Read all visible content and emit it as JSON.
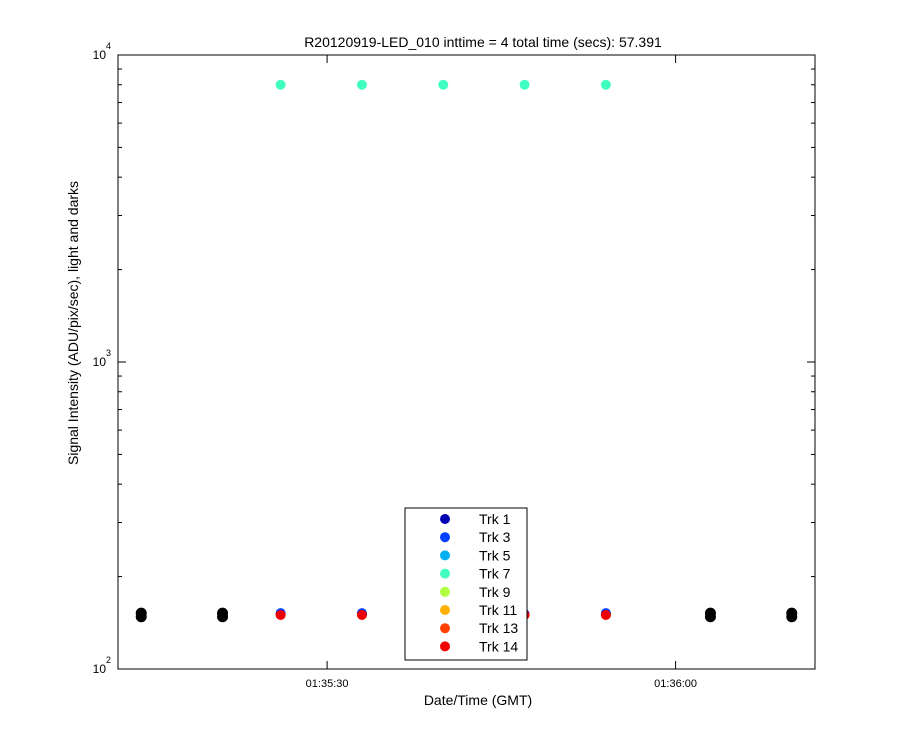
{
  "chart_data": {
    "type": "scatter",
    "title": "R20120919-LED_010 inttime = 4 total time (secs): 57.391",
    "xlabel": "Date/Time (GMT)",
    "ylabel": "Signal Intensity (ADU/pix/sec), light and darks",
    "x_axis": {
      "type": "time",
      "range": [
        "01:35:12",
        "01:36:12"
      ],
      "ticks": [
        "01:35:30",
        "01:36:00"
      ]
    },
    "y_axis": {
      "scale": "log",
      "range": [
        100,
        10000
      ],
      "ticks": [
        {
          "value": 100,
          "base": "10",
          "exp": "2"
        },
        {
          "value": 1000,
          "base": "10",
          "exp": "3"
        },
        {
          "value": 10000,
          "base": "10",
          "exp": "4"
        }
      ]
    },
    "grid": false,
    "legend_position": "bottom-center",
    "series": [
      {
        "name": "Trk 1",
        "color": "#0000b0",
        "x": [
          "01:35:26",
          "01:35:33",
          "01:35:47",
          "01:35:54"
        ],
        "y": [
          151,
          151,
          151,
          151
        ]
      },
      {
        "name": "Trk 3",
        "color": "#0040ff",
        "x": [
          "01:35:26",
          "01:35:33",
          "01:35:47",
          "01:35:54"
        ],
        "y": [
          152,
          152,
          151,
          152
        ]
      },
      {
        "name": "Trk 5",
        "color": "#00b0f0",
        "x": [],
        "y": []
      },
      {
        "name": "Trk 7",
        "color": "#40ffc0",
        "x": [
          "01:35:26",
          "01:35:33",
          "01:35:40",
          "01:35:47",
          "01:35:54"
        ],
        "y": [
          8000,
          8000,
          8000,
          8000,
          8000
        ]
      },
      {
        "name": "Trk 9",
        "color": "#b0ff40",
        "x": [],
        "y": []
      },
      {
        "name": "Trk 11",
        "color": "#ffb000",
        "x": [],
        "y": []
      },
      {
        "name": "Trk 13",
        "color": "#ff4000",
        "x": [],
        "y": []
      },
      {
        "name": "Trk 14",
        "color": "#f00000",
        "x": [
          "01:35:26",
          "01:35:33",
          "01:35:47",
          "01:35:54"
        ],
        "y": [
          150,
          150,
          150,
          150
        ]
      }
    ],
    "darks": {
      "color": "#000000",
      "x": [
        "01:35:14",
        "01:35:14",
        "01:35:21",
        "01:35:21",
        "01:36:03",
        "01:36:03",
        "01:36:10",
        "01:36:10"
      ],
      "y": [
        148,
        152,
        148,
        152,
        148,
        152,
        148,
        152
      ]
    }
  }
}
